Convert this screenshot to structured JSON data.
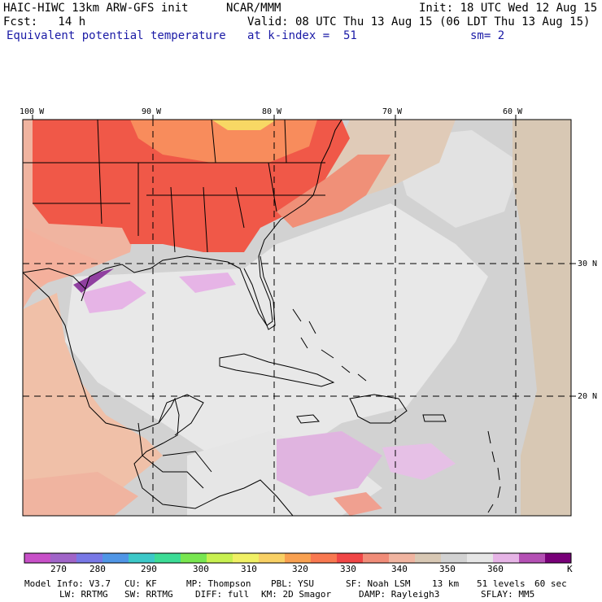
{
  "header": {
    "model": "HAIC-HIWC 13km ARW-GFS init",
    "center": "NCAR/MMM",
    "init": "Init: 18 UTC Wed 12 Aug 15",
    "fcst": "Fcst:   14 h",
    "valid": "Valid: 08 UTC Thu 13 Aug 15 (06 LDT Thu 13 Aug 15)",
    "field": "Equivalent potential temperature",
    "level": "at k-index =  51",
    "smoothing": "sm= 2"
  },
  "map": {
    "lon_labels": [
      "100 W",
      "90 W",
      "80 W",
      "70 W",
      "60 W"
    ],
    "lat_labels": [
      "30 N",
      "20 N"
    ]
  },
  "colorbar": {
    "ticks": [
      "270",
      "280",
      "290",
      "300",
      "310",
      "320",
      "330",
      "340",
      "350",
      "360"
    ],
    "unit": "K",
    "colors": [
      "#c850c8",
      "#a064c8",
      "#7878e6",
      "#5096e6",
      "#3cc8c8",
      "#3cdc96",
      "#78e650",
      "#c8f050",
      "#f0f064",
      "#f8d064",
      "#f8a050",
      "#f87850",
      "#f04646",
      "#f08c78",
      "#f0b4a0",
      "#d8c8b4",
      "#d2d2d2",
      "#e6e6e6",
      "#e6b4e6",
      "#b450b4",
      "#780078"
    ]
  },
  "model_info": {
    "line1": [
      "Model Info: V3.7",
      "CU: KF",
      "MP: Thompson",
      "PBL: YSU",
      "SF: Noah LSM",
      "13 km",
      "51 levels",
      "60 sec"
    ],
    "line2": [
      "LW: RRTMG",
      "SW: RRTMG",
      "DIFF: full",
      "KM: 2D Smagor",
      "DAMP: Rayleigh3",
      "SFLAY: MM5"
    ]
  }
}
